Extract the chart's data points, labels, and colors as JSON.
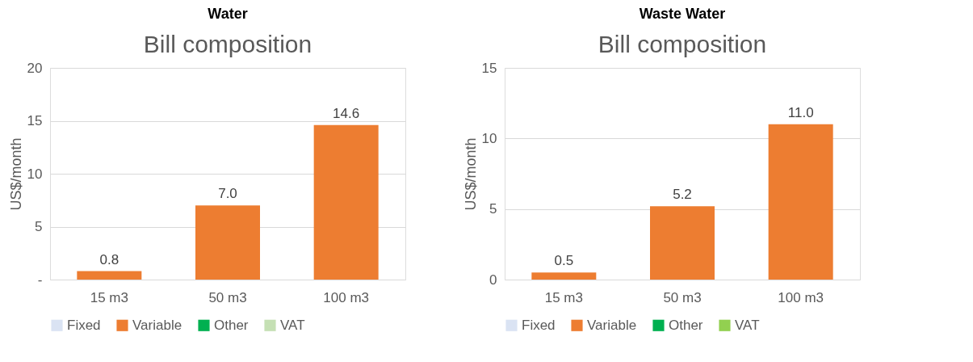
{
  "chart_data": [
    {
      "type": "bar",
      "title": "Water",
      "subtitle": "Bill composition",
      "ylabel": "US$/month",
      "categories": [
        "15 m3",
        "50 m3",
        "100 m3"
      ],
      "stacked": true,
      "ylim": [
        0,
        20
      ],
      "yticks": [
        {
          "value": 0,
          "label": "-"
        },
        5,
        10,
        15,
        20
      ],
      "grid": "y",
      "legend": "bottom",
      "series": [
        {
          "name": "Fixed",
          "color": "#dae3f3",
          "values": [
            0,
            0,
            0
          ]
        },
        {
          "name": "Variable",
          "color": "#ed7d31",
          "values": [
            0.8,
            7.0,
            14.6
          ],
          "value_labels": [
            "0.8",
            "7.0",
            "14.6"
          ]
        },
        {
          "name": "Other",
          "color": "#00b050",
          "values": [
            0,
            0,
            0
          ]
        },
        {
          "name": "VAT",
          "color": "#c5e0b4",
          "values": [
            0,
            0,
            0
          ]
        }
      ]
    },
    {
      "type": "bar",
      "title": "Waste Water",
      "subtitle": "Bill composition",
      "ylabel": "US$/month",
      "categories": [
        "15 m3",
        "50 m3",
        "100 m3"
      ],
      "stacked": true,
      "ylim": [
        0,
        15
      ],
      "yticks": [
        0,
        5,
        10,
        15
      ],
      "grid": "y",
      "legend": "bottom",
      "series": [
        {
          "name": "Fixed",
          "color": "#dae3f3",
          "values": [
            0,
            0,
            0
          ]
        },
        {
          "name": "Variable",
          "color": "#ed7d31",
          "values": [
            0.5,
            5.2,
            11.0
          ],
          "value_labels": [
            "0.5",
            "5.2",
            "11.0"
          ]
        },
        {
          "name": "Other",
          "color": "#00b050",
          "values": [
            0,
            0,
            0
          ]
        },
        {
          "name": "VAT",
          "color": "#92d050",
          "values": [
            0,
            0,
            0
          ]
        }
      ]
    }
  ]
}
